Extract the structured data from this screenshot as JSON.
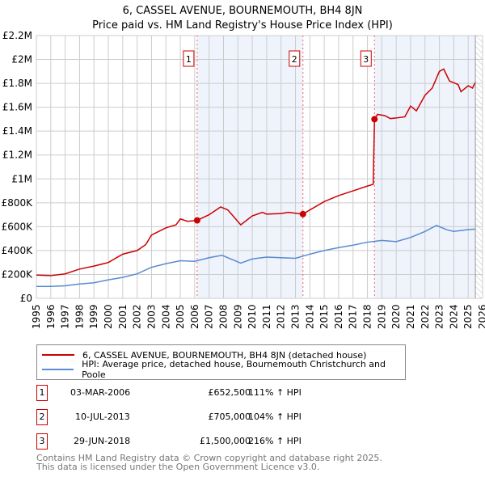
{
  "chart_data": {
    "type": "line",
    "title": "6, CASSEL AVENUE, BOURNEMOUTH, BH4 8JN",
    "subtitle": "Price paid vs. HM Land Registry's House Price Index (HPI)",
    "xlim": [
      1995,
      2026
    ],
    "ylim": [
      0,
      2200000
    ],
    "y_ticks": [
      {
        "v": 0,
        "label": "£0"
      },
      {
        "v": 200000,
        "label": "£200K"
      },
      {
        "v": 400000,
        "label": "£400K"
      },
      {
        "v": 600000,
        "label": "£600K"
      },
      {
        "v": 800000,
        "label": "£800K"
      },
      {
        "v": 1000000,
        "label": "£1M"
      },
      {
        "v": 1200000,
        "label": "£1.2M"
      },
      {
        "v": 1400000,
        "label": "£1.4M"
      },
      {
        "v": 1600000,
        "label": "£1.6M"
      },
      {
        "v": 1800000,
        "label": "£1.8M"
      },
      {
        "v": 2000000,
        "label": "£2M"
      },
      {
        "v": 2200000,
        "label": "£2.2M"
      }
    ],
    "x_ticks": [
      "1995",
      "1996",
      "1997",
      "1998",
      "1999",
      "2000",
      "2001",
      "2002",
      "2003",
      "2004",
      "2005",
      "2006",
      "2007",
      "2008",
      "2009",
      "2010",
      "2011",
      "2012",
      "2013",
      "2014",
      "2015",
      "2016",
      "2017",
      "2018",
      "2019",
      "2020",
      "2021",
      "2022",
      "2023",
      "2024",
      "2025",
      "2026"
    ],
    "grid": true,
    "series": [
      {
        "name": "6, CASSEL AVENUE, BOURNEMOUTH, BH4 8JN (detached house)",
        "color": "#cc0000",
        "points": [
          [
            1995,
            195000
          ],
          [
            1996,
            190000
          ],
          [
            1997,
            205000
          ],
          [
            1998,
            245000
          ],
          [
            1999,
            270000
          ],
          [
            2000,
            300000
          ],
          [
            2001,
            370000
          ],
          [
            2002,
            400000
          ],
          [
            2002.6,
            450000
          ],
          [
            2003,
            530000
          ],
          [
            2004,
            590000
          ],
          [
            2004.7,
            615000
          ],
          [
            2005,
            665000
          ],
          [
            2005.5,
            645000
          ],
          [
            2006.17,
            652500
          ],
          [
            2007,
            700000
          ],
          [
            2007.8,
            765000
          ],
          [
            2008.3,
            740000
          ],
          [
            2009.2,
            615000
          ],
          [
            2010,
            690000
          ],
          [
            2010.7,
            720000
          ],
          [
            2011,
            705000
          ],
          [
            2012,
            710000
          ],
          [
            2012.5,
            720000
          ],
          [
            2013.5,
            705000
          ],
          [
            2014,
            740000
          ],
          [
            2015,
            810000
          ],
          [
            2016,
            860000
          ],
          [
            2017,
            900000
          ],
          [
            2018,
            940000
          ],
          [
            2018.4,
            955000
          ],
          [
            2018.49,
            1500000
          ],
          [
            2018.7,
            1540000
          ],
          [
            2019.2,
            1530000
          ],
          [
            2019.6,
            1505000
          ],
          [
            2020,
            1510000
          ],
          [
            2020.6,
            1520000
          ],
          [
            2021,
            1610000
          ],
          [
            2021.4,
            1570000
          ],
          [
            2022,
            1700000
          ],
          [
            2022.5,
            1760000
          ],
          [
            2023,
            1900000
          ],
          [
            2023.3,
            1920000
          ],
          [
            2023.7,
            1820000
          ],
          [
            2024.3,
            1790000
          ],
          [
            2024.5,
            1730000
          ],
          [
            2025,
            1780000
          ],
          [
            2025.3,
            1760000
          ],
          [
            2025.5,
            1810000
          ]
        ]
      },
      {
        "name": "HPI: Average price, detached house, Bournemouth Christchurch and Poole",
        "color": "#5b8bd0",
        "points": [
          [
            1995,
            100000
          ],
          [
            1996,
            100000
          ],
          [
            1997,
            105000
          ],
          [
            1998,
            120000
          ],
          [
            1999,
            130000
          ],
          [
            2000,
            155000
          ],
          [
            2001,
            175000
          ],
          [
            2002,
            205000
          ],
          [
            2003,
            260000
          ],
          [
            2004,
            290000
          ],
          [
            2005,
            315000
          ],
          [
            2006,
            310000
          ],
          [
            2007,
            340000
          ],
          [
            2007.9,
            360000
          ],
          [
            2009.2,
            295000
          ],
          [
            2010,
            330000
          ],
          [
            2011,
            345000
          ],
          [
            2012,
            340000
          ],
          [
            2013,
            335000
          ],
          [
            2014,
            370000
          ],
          [
            2015,
            400000
          ],
          [
            2016,
            425000
          ],
          [
            2017,
            445000
          ],
          [
            2018,
            470000
          ],
          [
            2019,
            485000
          ],
          [
            2020,
            475000
          ],
          [
            2021,
            510000
          ],
          [
            2022,
            560000
          ],
          [
            2022.8,
            610000
          ],
          [
            2023.5,
            575000
          ],
          [
            2024,
            560000
          ],
          [
            2025,
            575000
          ],
          [
            2025.5,
            580000
          ]
        ]
      }
    ],
    "sales": [
      {
        "n": "1",
        "x": 2006.17,
        "value": 652500
      },
      {
        "n": "2",
        "x": 2013.52,
        "value": 705000
      },
      {
        "n": "3",
        "x": 2018.49,
        "value": 1500000
      }
    ],
    "shaded_ranges": [
      [
        2006.17,
        2013.52
      ],
      [
        2018.49,
        2025.5
      ]
    ],
    "future_hatch_from": 2025.5
  },
  "legend": {
    "items": [
      "6, CASSEL AVENUE, BOURNEMOUTH, BH4 8JN (detached house)",
      "HPI: Average price, detached house, Bournemouth Christchurch and Poole"
    ]
  },
  "table": [
    {
      "n": "1",
      "date": "03-MAR-2006",
      "price": "£652,500",
      "hpi": "111% ↑ HPI"
    },
    {
      "n": "2",
      "date": "10-JUL-2013",
      "price": "£705,000",
      "hpi": "104% ↑ HPI"
    },
    {
      "n": "3",
      "date": "29-JUN-2018",
      "price": "£1,500,000",
      "hpi": "216% ↑ HPI"
    }
  ],
  "footer": {
    "line1": "Contains HM Land Registry data © Crown copyright and database right 2025.",
    "line2": "This data is licensed under the Open Government Licence v3.0."
  }
}
